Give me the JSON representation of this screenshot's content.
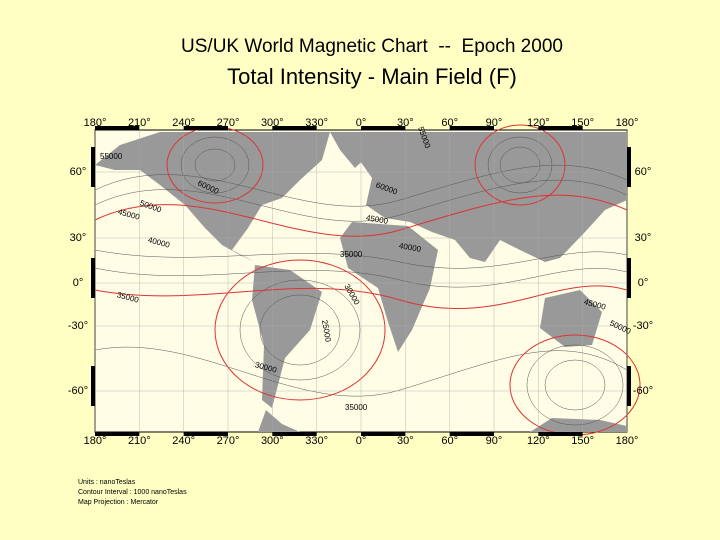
{
  "header": {
    "title": "US/UK World Magnetic Chart  --  Epoch 2000",
    "subtitle": "Total Intensity - Main Field (F)"
  },
  "map": {
    "longitude_labels": [
      "180°",
      "210°",
      "240°",
      "270°",
      "300°",
      "330°",
      "0°",
      "30°",
      "60°",
      "90°",
      "120°",
      "150°",
      "180°"
    ],
    "latitude_labels": [
      "60°",
      "30°",
      "0°",
      "-30°",
      "-60°"
    ],
    "contour_labels": [
      "55000",
      "60000",
      "50000",
      "45000",
      "40000",
      "35000",
      "60000",
      "45000",
      "35000",
      "40000",
      "30000",
      "25000",
      "30000",
      "35000",
      "45000",
      "50000",
      "55000"
    ]
  },
  "footer": {
    "notes": [
      "Units : nanoTeslas",
      "Contour Interval : 1000 nanoTeslas",
      "Map Projection : Mercator"
    ]
  }
}
